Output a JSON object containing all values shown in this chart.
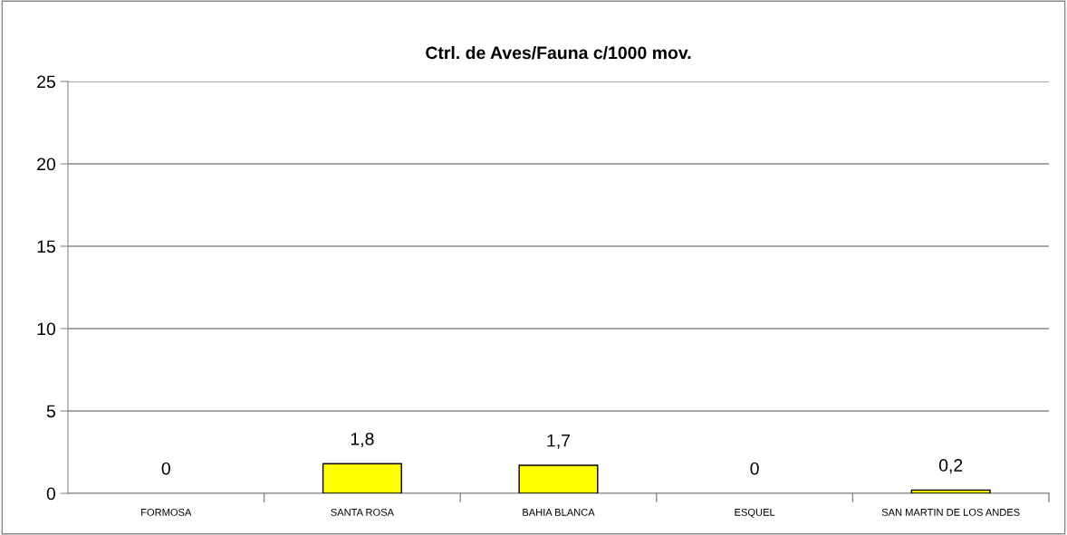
{
  "chart_data": {
    "type": "bar",
    "title": "Ctrl. de Aves/Fauna c/1000 mov.",
    "categories": [
      "FORMOSA",
      "SANTA ROSA",
      "BAHIA BLANCA",
      "ESQUEL",
      "SAN MARTIN DE LOS ANDES"
    ],
    "values": [
      0,
      1.8,
      1.7,
      0,
      0.2
    ],
    "value_labels": [
      "0",
      "1,8",
      "1,7",
      "0",
      "0,2"
    ],
    "color": "#ffff00",
    "ylim": [
      0,
      25
    ],
    "yticks": [
      0,
      5,
      10,
      15,
      20,
      25
    ],
    "grid": "y",
    "legend": false
  }
}
